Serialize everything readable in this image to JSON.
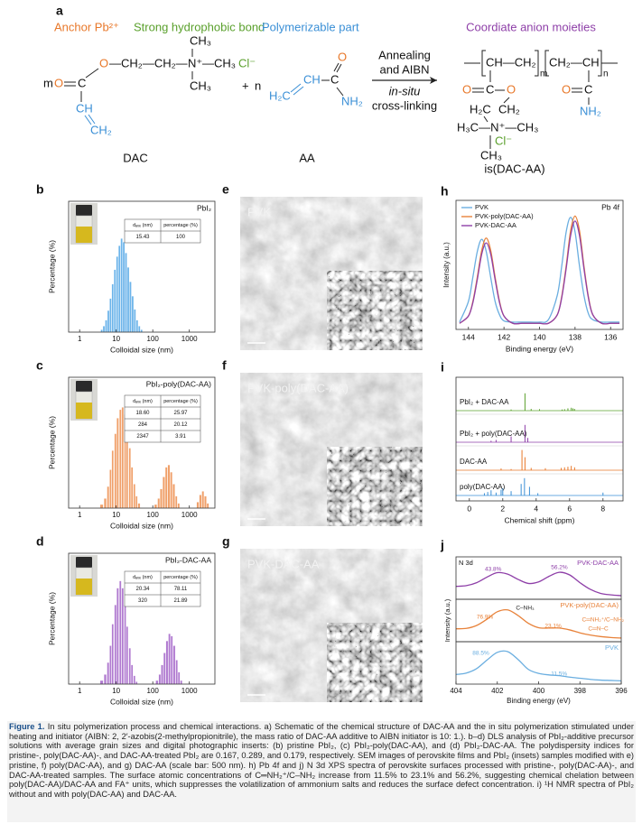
{
  "panel_a": {
    "letter": "a",
    "anchor": "Anchor Pb²⁺",
    "hydrophobic": "Strong hydrophobic bond",
    "polymerizable": "Polymerizable part",
    "coordinate": "Coordiate anion moieties",
    "dac": {
      "o_ester": "O",
      "chain": "—CH₂—CH₂—",
      "n": "N⁺",
      "ch3_right": "—CH₃",
      "cl": "Cl⁻",
      "ch3_top": "CH₃",
      "ch3_bottom": "CH₃",
      "m": "m",
      "o_carbonyl": "O",
      "c": "C",
      "ch": "CH",
      "ch2": "CH₂",
      "name": "DAC"
    },
    "plus": "+",
    "n": "n",
    "aa": {
      "h2c": "H₂C",
      "ch": "CH",
      "c": "C",
      "o": "O",
      "nh2": "NH₂",
      "name": "AA"
    },
    "arrow": {
      "line1": "Annealing",
      "line2": "and AIBN",
      "line3": "in-situ",
      "line4": "cross-linking"
    },
    "product": {
      "unit1": "CH—CH₂",
      "m": "m",
      "unit2": "CH₂—CH",
      "n": "n",
      "c1": "C",
      "o1": "O",
      "o2": "O",
      "h2c": "H₂C",
      "ch2": "CH₂",
      "ammonium": "H₃C—N⁺—CH₃",
      "cl": "Cl⁻",
      "ch3": "CH₃",
      "c2": "C",
      "o3": "O",
      "nh2": "NH₂",
      "name": "is(DAC-AA)"
    }
  },
  "dls": {
    "type": "bar",
    "x_label": "Colloidal size (nm)",
    "y_label": "Percentage (%)",
    "log_x": true,
    "xlim": [
      0.5,
      5000
    ],
    "ylim": [
      0,
      100
    ],
    "xticks": [
      1,
      10,
      100,
      1000
    ],
    "panels": [
      {
        "letter": "b",
        "title": "PbI₂",
        "color": "#6cb4ea",
        "table": {
          "headers": [
            "dₐᵥₑ (nm)",
            "percentage (%)"
          ],
          "rows": [
            [
              "15.43",
              "100"
            ]
          ]
        },
        "x": [
          4,
          4.6,
          5.3,
          6.1,
          7,
          8,
          9.2,
          10.6,
          12.2,
          14,
          16.1,
          18.5,
          21.3,
          24.5,
          28.2,
          32.4,
          37.3,
          42.9,
          49.3
        ],
        "values": [
          2,
          5,
          10,
          18,
          28,
          40,
          52,
          63,
          72,
          78,
          75,
          66,
          54,
          42,
          30,
          19,
          10,
          5,
          2
        ]
      },
      {
        "letter": "c",
        "title": "PbI₂-poly(DAC-AA)",
        "color": "#f0a06a",
        "table": {
          "headers": [
            "dₐᵥₑ (nm)",
            "percentage (%)"
          ],
          "rows": [
            [
              "18.60",
              "25.97"
            ],
            [
              "284",
              "20.12"
            ],
            [
              "2347",
              "3.91"
            ]
          ]
        },
        "x": [
          4,
          5,
          6,
          7,
          8,
          9.5,
          11,
          13,
          15,
          17.5,
          20,
          23.5,
          27,
          31.5,
          36,
          42,
          120,
          145,
          170,
          200,
          235,
          275,
          320,
          375,
          440,
          510,
          1700,
          2000,
          2350,
          2750,
          3200
        ],
        "values": [
          3,
          8,
          18,
          32,
          48,
          62,
          75,
          82,
          84,
          78,
          66,
          50,
          34,
          20,
          10,
          4,
          3,
          8,
          16,
          26,
          34,
          36,
          30,
          20,
          10,
          4,
          5,
          11,
          14,
          10,
          4
        ]
      },
      {
        "letter": "d",
        "title": "PbI₂-DAC-AA",
        "color": "#b07ad0",
        "table": {
          "headers": [
            "dₐᵥₑ (nm)",
            "percentage (%)"
          ],
          "rows": [
            [
              "20.34",
              "78.11"
            ],
            [
              "320",
              "21.89"
            ]
          ]
        },
        "x": [
          4,
          5,
          6,
          7,
          8,
          9.5,
          11,
          13,
          15,
          17.5,
          20,
          23.5,
          27,
          31.5,
          36,
          130,
          155,
          180,
          210,
          245,
          285,
          330,
          385,
          450,
          520,
          600
        ],
        "values": [
          3,
          8,
          18,
          32,
          50,
          66,
          80,
          86,
          80,
          66,
          48,
          30,
          16,
          7,
          2,
          3,
          8,
          16,
          26,
          36,
          42,
          40,
          32,
          20,
          10,
          3
        ]
      }
    ]
  },
  "sem": {
    "panels": [
      {
        "letter": "e",
        "label": "PVK"
      },
      {
        "letter": "f",
        "label": "PVK-poly(DAC-AA)"
      },
      {
        "letter": "g",
        "label": "PVK-DAC-AA"
      }
    ]
  },
  "xps_pb": {
    "type": "line",
    "letter": "h",
    "core": "Pb 4f",
    "x_label": "Binding energy (eV)",
    "y_label": "Intensity (a.u.)",
    "xlim": [
      144.7,
      135.3
    ],
    "ylim": [
      0,
      100
    ],
    "xticks": [
      144,
      142,
      140,
      138,
      136
    ],
    "legend": "upper left",
    "x": [
      144.5,
      144,
      143.75,
      143.5,
      143.25,
      143,
      142.75,
      142.5,
      142.25,
      142,
      141.5,
      141,
      140.5,
      140,
      139.5,
      139,
      138.75,
      138.5,
      138.25,
      138,
      137.75,
      137.5,
      137.25,
      137,
      136.5,
      136,
      135.5
    ],
    "series": [
      {
        "name": "PVK",
        "color": "#6aaee0",
        "values": [
          6,
          23,
          43,
          64,
          74,
          64,
          43,
          23,
          12,
          7,
          6,
          6,
          6,
          6,
          8,
          28,
          52,
          80,
          92,
          80,
          52,
          28,
          13,
          8,
          6,
          6,
          6
        ]
      },
      {
        "name": "PVK-poly(DAC-AA)",
        "color": "#e8823a",
        "values": [
          5,
          11,
          23,
          43,
          65,
          75,
          65,
          43,
          23,
          11,
          5,
          5,
          5,
          5,
          5,
          12,
          27,
          52,
          81,
          93,
          81,
          52,
          27,
          12,
          5,
          5,
          5
        ]
      },
      {
        "name": "PVK-DAC-AA",
        "color": "#8e3fa8",
        "values": [
          5,
          11,
          22,
          41,
          62,
          71,
          62,
          41,
          22,
          11,
          5,
          5,
          5,
          5,
          5,
          12,
          26,
          50,
          77,
          89,
          77,
          50,
          26,
          12,
          5,
          5,
          5
        ]
      }
    ]
  },
  "nmr": {
    "type": "stick",
    "letter": "i",
    "x_label": "Chemical shift (ppm)",
    "xlim": [
      -0.8,
      9.2
    ],
    "ylim": [
      0,
      100
    ],
    "xticks": [
      0,
      2,
      4,
      6,
      8
    ],
    "series": [
      {
        "name": "PbI₂ + DAC-AA",
        "color": "#5aa02c",
        "x": [
          2.5,
          3.33,
          3.7,
          4.2,
          5.55,
          5.7,
          5.9,
          6.1,
          6.2,
          6.3
        ],
        "values": [
          4,
          60,
          6,
          5,
          4,
          5,
          8,
          10,
          8,
          6
        ]
      },
      {
        "name": "PbI₂ + poly(DAC-AA)",
        "color": "#8e3fa8",
        "x": [
          1.3,
          1.6,
          2.5,
          3.33,
          3.5
        ],
        "values": [
          5,
          8,
          20,
          60,
          15
        ]
      },
      {
        "name": "DAC-AA",
        "color": "#e8782a",
        "x": [
          1.9,
          2.5,
          3.15,
          3.33,
          3.7,
          4.55,
          5.5,
          5.7,
          5.9,
          6.1,
          6.3
        ],
        "values": [
          6,
          4,
          70,
          45,
          8,
          7,
          8,
          10,
          12,
          15,
          10
        ]
      },
      {
        "name": "poly(DAC-AA)",
        "color": "#3a8fd6",
        "x": [
          0.9,
          1.1,
          1.3,
          1.6,
          1.9,
          2.0,
          2.5,
          3.1,
          3.3,
          3.6,
          4.1,
          8.0
        ],
        "values": [
          8,
          12,
          18,
          10,
          20,
          25,
          15,
          40,
          60,
          30,
          8,
          10
        ]
      }
    ]
  },
  "xps_n": {
    "type": "line",
    "letter": "j",
    "core": "N 3d",
    "x_label": "Binding energy (eV)",
    "y_label": "Intensity (a.u.)",
    "xlim": [
      404,
      396
    ],
    "ylim": [
      0,
      100
    ],
    "xticks": [
      404,
      402,
      400,
      398,
      396
    ],
    "x": [
      404,
      403.5,
      403,
      402.5,
      402,
      401.5,
      401,
      400.5,
      400,
      399.5,
      399,
      398.5,
      398,
      397.5,
      397,
      396.5,
      396
    ],
    "series": [
      {
        "name": "PVK-DAC-AA",
        "color": "#8e3fa8",
        "values": [
          30,
          32,
          40,
          55,
          67,
          63,
          49,
          38,
          42,
          57,
          68,
          61,
          40,
          22,
          11,
          7,
          5
        ],
        "annotations": [
          "43.8%",
          "56.2%"
        ]
      },
      {
        "name": "PVK-poly(DAC-AA)",
        "color": "#e8823a",
        "values": [
          30,
          31,
          39,
          56,
          76,
          81,
          66,
          45,
          33,
          32,
          32,
          27,
          19,
          13,
          9,
          6.5,
          5
        ],
        "annotations": [
          "C–NH₃",
          "76.9%",
          "23.1%",
          "C═NH₂⁺/C–NH₂",
          "C═N–C"
        ]
      },
      {
        "name": "PVK",
        "color": "#6aaee0",
        "values": [
          21,
          25,
          37,
          60,
          81,
          83,
          62,
          35,
          24,
          20,
          18,
          14,
          11,
          8,
          6,
          5,
          4
        ],
        "annotations": [
          "88.5%",
          "11.5%"
        ]
      }
    ]
  },
  "caption": {
    "label": "Figure 1.",
    "text": "In situ polymerization process and chemical interactions. a) Schematic of the chemical structure of DAC-AA and the in situ polymerization stimulated under heating and initiator (AIBN: 2, 2′-azobis(2-methylpropionitrile), the mass ratio of DAC-AA additive to AIBN initiator is 10: 1.). b–d) DLS analysis of PbI₂-additive precursor solutions with average grain sizes and digital photographic inserts: (b) pristine PbI₂, (c) PbI₂-poly(DAC-AA), and (d) PbI₂-DAC-AA. The polydispersity indices for pristine-, poly(DAC-AA)-, and DAC-AA-treated PbI₂ are 0.167, 0.289, and 0.179, respectively. SEM images of perovskite films and PbI₂ (insets) samples modified with e) pristine, f) poly(DAC-AA), and g) DAC-AA (scale bar: 500 nm). h) Pb 4f and j) N 3d XPS spectra of perovskite surfaces processed with pristine-, poly(DAC-AA)-, and DAC-AA-treated samples. The surface atomic concentrations of C═NH₂⁺/C–NH₂ increase from 11.5% to 23.1% and 56.2%, suggesting chemical chelation between poly(DAC-AA)/DAC-AA and FA⁺ units, which suppresses the volatilization of ammonium salts and reduces the surface defect concentration. i) ¹H NMR spectra of PbI₂ without and with poly(DAC-AA) and DAC-AA."
  }
}
